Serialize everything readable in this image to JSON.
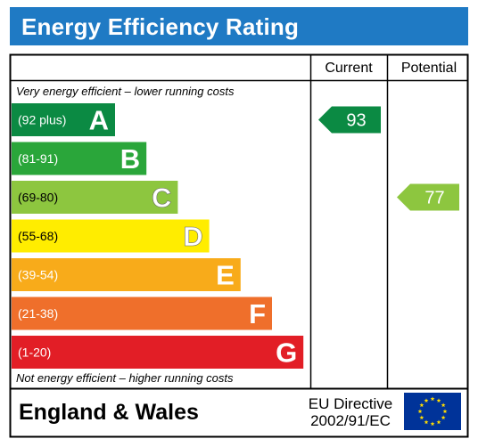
{
  "header": {
    "title": "Energy Efficiency Rating"
  },
  "columns": {
    "current": "Current",
    "potential": "Potential"
  },
  "notes": {
    "top": "Very energy efficient – lower running costs",
    "bottom": "Not energy efficient – higher running costs"
  },
  "footer": {
    "region": "England & Wales",
    "directive_line1": "EU Directive",
    "directive_line2": "2002/91/EC",
    "flag_icon": "eu-flag-icon"
  },
  "chart_data": {
    "type": "bar",
    "categories": [
      "A",
      "B",
      "C",
      "D",
      "E",
      "F",
      "G"
    ],
    "bands": [
      {
        "letter": "A",
        "range": "(92 plus)",
        "min": 92,
        "max": 100,
        "color": "#0b8a43"
      },
      {
        "letter": "B",
        "range": "(81-91)",
        "min": 81,
        "max": 91,
        "color": "#2aa63a"
      },
      {
        "letter": "C",
        "range": "(69-80)",
        "min": 69,
        "max": 80,
        "color": "#8dc63f"
      },
      {
        "letter": "D",
        "range": "(55-68)",
        "min": 55,
        "max": 68,
        "color": "#ffed00"
      },
      {
        "letter": "E",
        "range": "(39-54)",
        "min": 39,
        "max": 54,
        "color": "#f8ab1a"
      },
      {
        "letter": "F",
        "range": "(21-38)",
        "min": 21,
        "max": 38,
        "color": "#ef6f2b"
      },
      {
        "letter": "G",
        "range": "(1-20)",
        "min": 1,
        "max": 20,
        "color": "#e21e26"
      }
    ],
    "series": [
      {
        "name": "Current",
        "value": 93,
        "band": "A",
        "color": "#0b8a43"
      },
      {
        "name": "Potential",
        "value": 77,
        "band": "C",
        "color": "#8dc63f"
      }
    ]
  }
}
